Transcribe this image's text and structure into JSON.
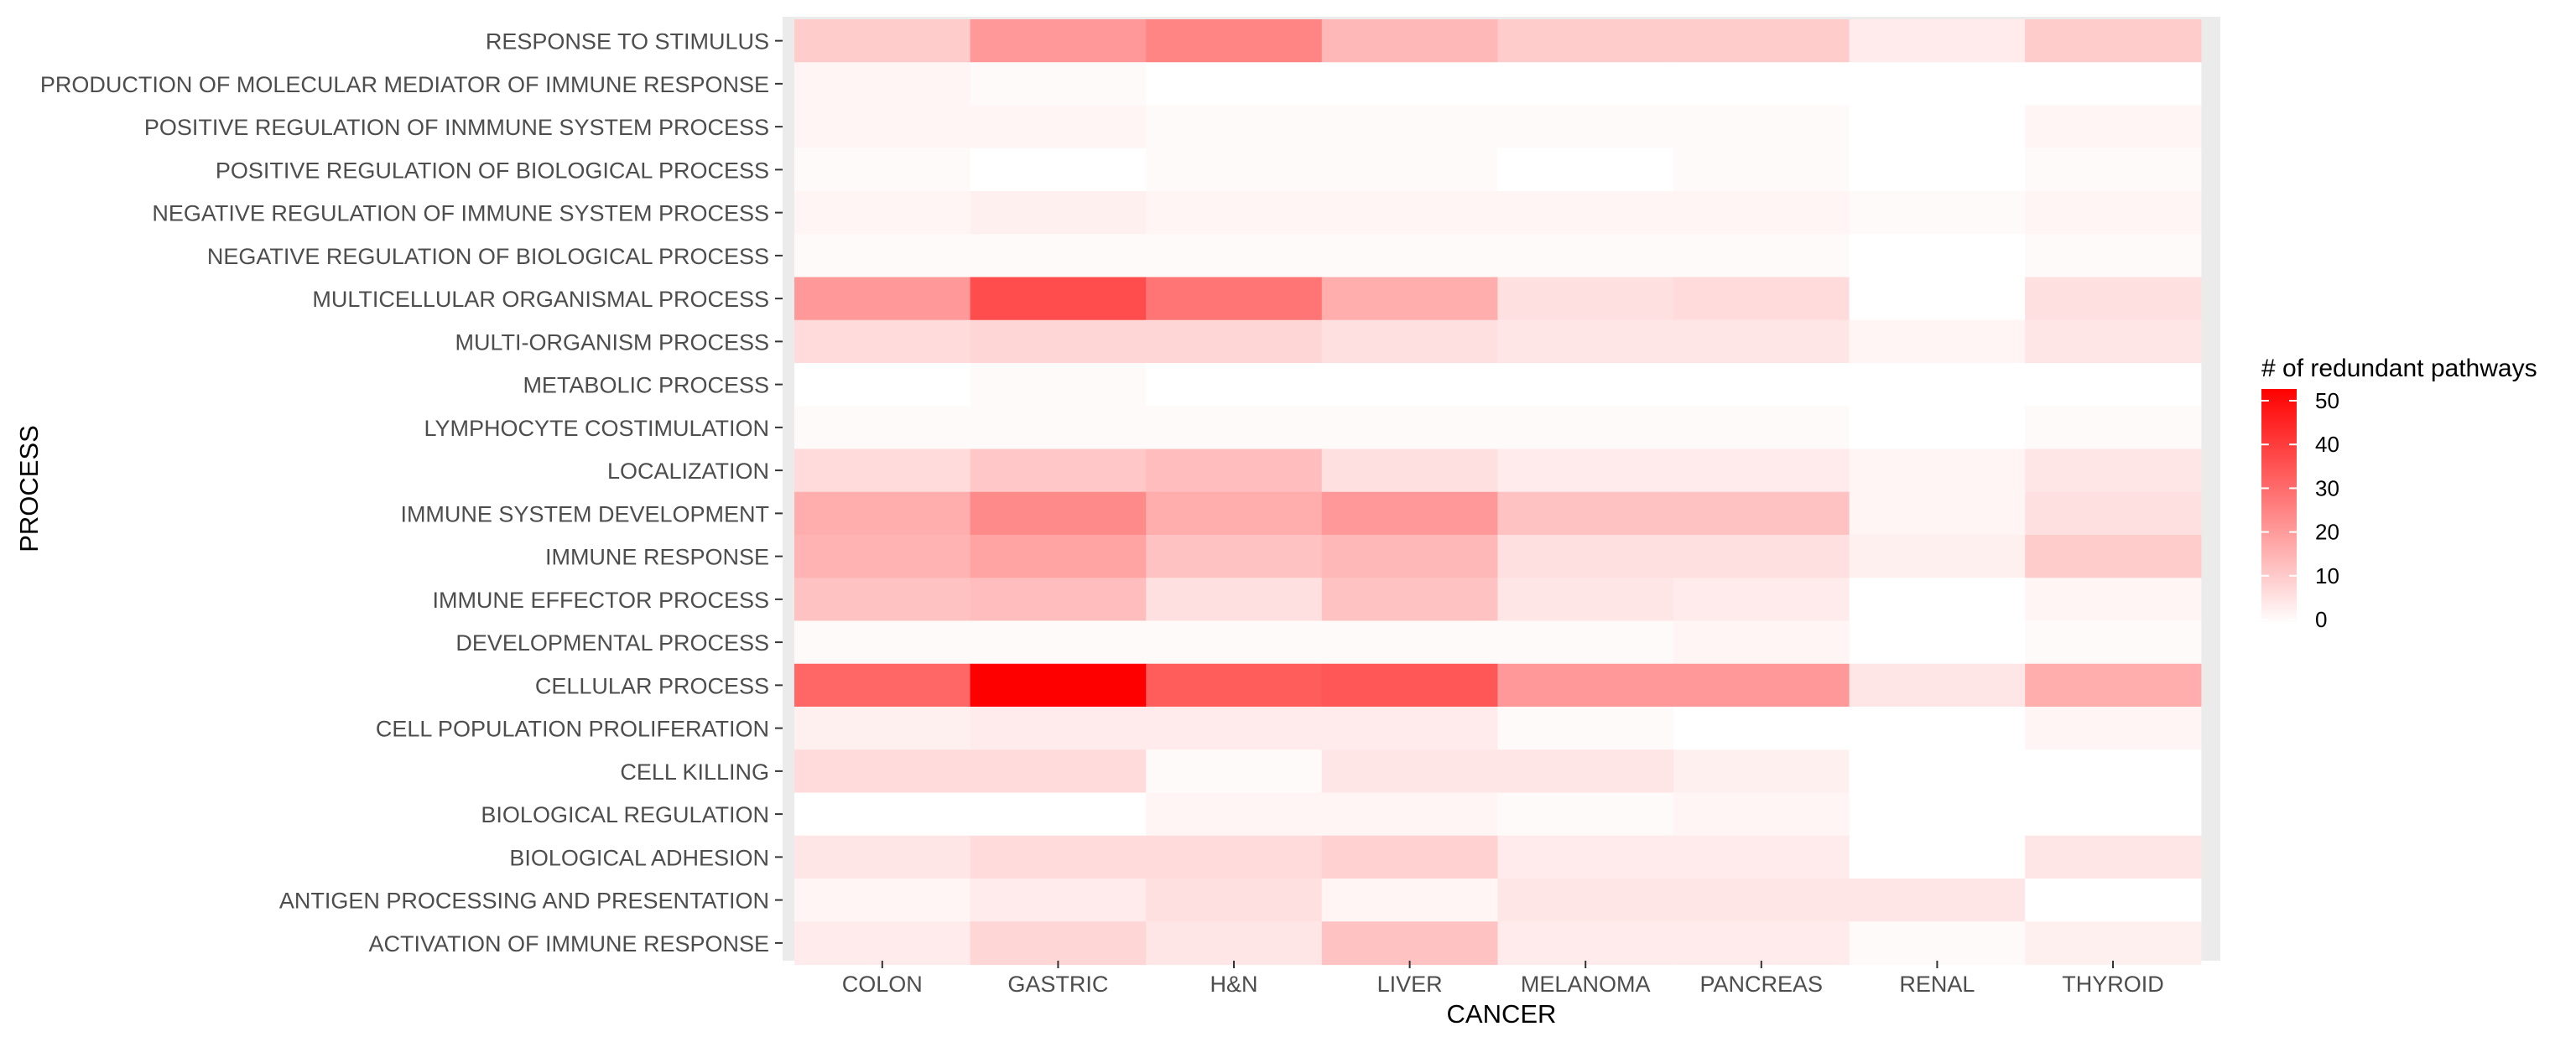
{
  "chart_data": {
    "type": "heatmap",
    "xlabel": "CANCER",
    "ylabel": "PROCESS",
    "x": [
      "COLON",
      "GASTRIC",
      "H&N",
      "LIVER",
      "MELANOMA",
      "PANCREAS",
      "RENAL",
      "THYROID"
    ],
    "y": [
      "RESPONSE TO STIMULUS",
      "PRODUCTION OF MOLECULAR MEDIATOR OF IMMUNE RESPONSE",
      "POSITIVE REGULATION OF INMMUNE SYSTEM PROCESS",
      "POSITIVE REGULATION OF BIOLOGICAL PROCESS",
      "NEGATIVE REGULATION OF IMMUNE SYSTEM PROCESS",
      "NEGATIVE REGULATION OF BIOLOGICAL PROCESS",
      "MULTICELLULAR ORGANISMAL PROCESS",
      "MULTI-ORGANISM PROCESS",
      "METABOLIC PROCESS",
      "LYMPHOCYTE COSTIMULATION",
      "LOCALIZATION",
      "IMMUNE SYSTEM DEVELOPMENT",
      "IMMUNE RESPONSE",
      "IMMUNE EFFECTOR PROCESS",
      "DEVELOPMENTAL PROCESS",
      "CELLULAR PROCESS",
      "CELL POPULATION PROLIFERATION",
      "CELL KILLING",
      "BIOLOGICAL REGULATION",
      "BIOLOGICAL ADHESION",
      "ANTIGEN PROCESSING AND PRESENTATION",
      "ACTIVATION OF IMMUNE RESPONSE"
    ],
    "values": [
      [
        10,
        20,
        24,
        14,
        10,
        10,
        4,
        10
      ],
      [
        2,
        1,
        0,
        0,
        0,
        0,
        0,
        0
      ],
      [
        2,
        2,
        1,
        1,
        1,
        1,
        0,
        2
      ],
      [
        1,
        0,
        1,
        1,
        0,
        1,
        0,
        1
      ],
      [
        2,
        3,
        2,
        2,
        2,
        2,
        1,
        2
      ],
      [
        1,
        1,
        1,
        1,
        1,
        1,
        0,
        1
      ],
      [
        20,
        35,
        27,
        16,
        6,
        7,
        0,
        6
      ],
      [
        7,
        8,
        8,
        6,
        5,
        5,
        2,
        5
      ],
      [
        0,
        1,
        0,
        0,
        0,
        0,
        0,
        0
      ],
      [
        1,
        1,
        1,
        1,
        1,
        1,
        0,
        1
      ],
      [
        7,
        11,
        13,
        6,
        4,
        4,
        2,
        5
      ],
      [
        16,
        23,
        16,
        20,
        12,
        12,
        2,
        6
      ],
      [
        15,
        18,
        12,
        14,
        6,
        6,
        3,
        10
      ],
      [
        12,
        13,
        6,
        12,
        5,
        4,
        0,
        2
      ],
      [
        1,
        1,
        1,
        1,
        1,
        2,
        0,
        1
      ],
      [
        30,
        50,
        32,
        33,
        20,
        20,
        5,
        16
      ],
      [
        3,
        4,
        4,
        4,
        1,
        0,
        0,
        2
      ],
      [
        7,
        7,
        1,
        5,
        5,
        3,
        0,
        0
      ],
      [
        0,
        0,
        2,
        2,
        1,
        2,
        0,
        0
      ],
      [
        5,
        7,
        7,
        9,
        4,
        4,
        0,
        5
      ],
      [
        2,
        4,
        6,
        2,
        5,
        5,
        5,
        0
      ],
      [
        4,
        8,
        5,
        12,
        4,
        4,
        1,
        3
      ]
    ],
    "legend": {
      "title": "# of redundant pathways",
      "ticks": [
        0,
        10,
        20,
        30,
        40,
        50
      ],
      "range": [
        0,
        50
      ],
      "low_color": "#ffffff",
      "high_color": "#ff0000",
      "placement": "right"
    },
    "panel_background": "#ebebeb"
  }
}
